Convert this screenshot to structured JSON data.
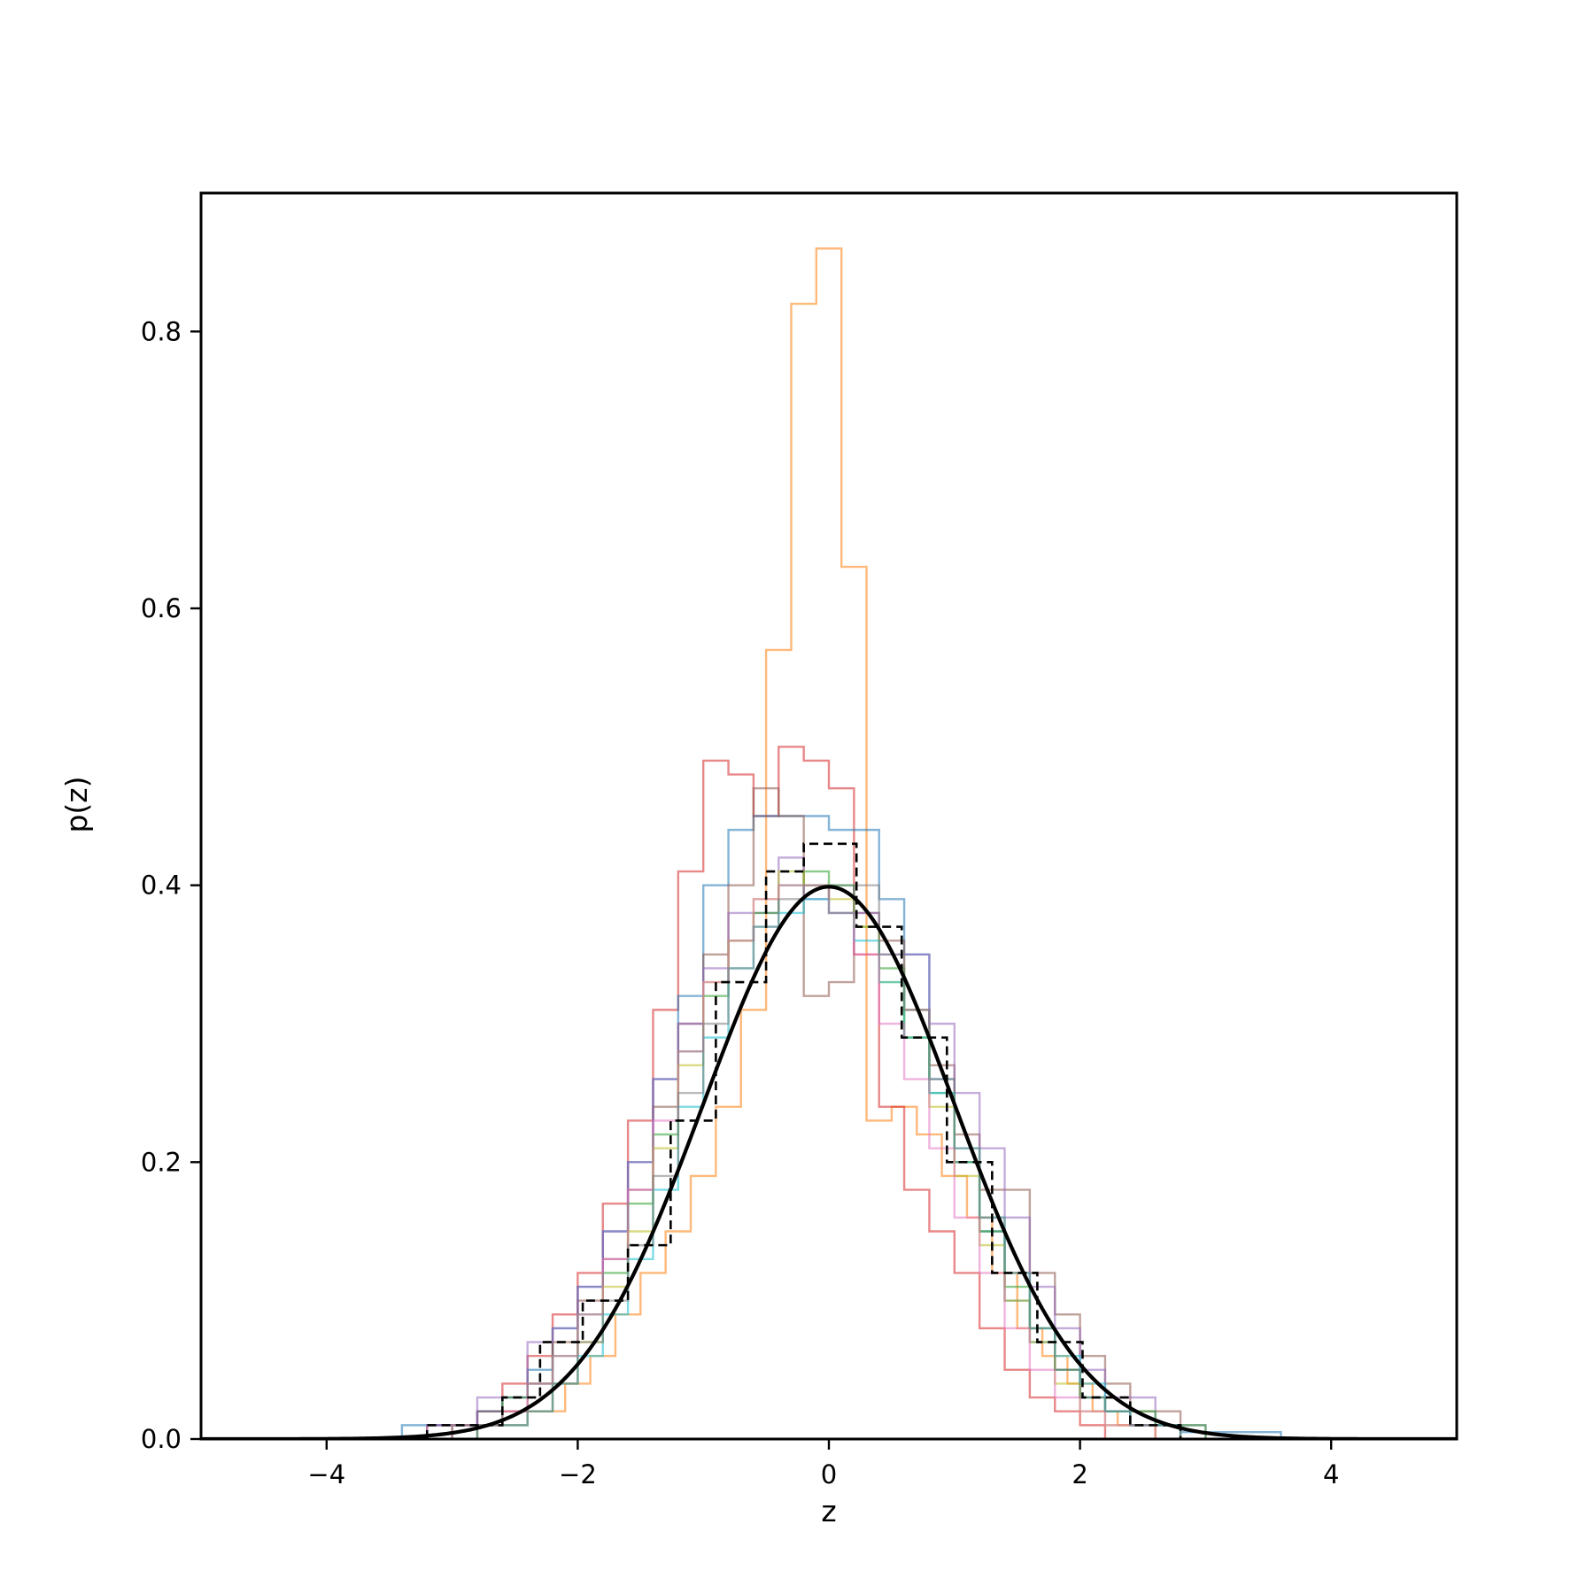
{
  "chart_data": {
    "type": "histogram",
    "xlabel": "z",
    "ylabel": "p(z)",
    "xlim": [
      -5,
      5
    ],
    "ylim": [
      0,
      0.9
    ],
    "xticks": [
      -4,
      -2,
      0,
      2,
      4
    ],
    "xtick_labels": [
      "−4",
      "−2",
      "0",
      "2",
      "4"
    ],
    "yticks": [
      0.0,
      0.2,
      0.4,
      0.6,
      0.8
    ],
    "ytick_labels": [
      "0.0",
      "0.2",
      "0.4",
      "0.6",
      "0.8"
    ],
    "grid": false,
    "legend": false,
    "step_series": [
      {
        "color": "#ff7f0e",
        "edges": [
          -2.8,
          -2.1,
          -1.9,
          -1.7,
          -1.5,
          -1.3,
          -1.1,
          -0.9,
          -0.7,
          -0.5,
          -0.3,
          -0.1,
          0.1,
          0.3,
          0.5,
          0.7,
          0.9,
          1.1,
          1.3,
          1.5,
          1.7,
          1.9,
          2.1,
          2.3,
          2.6
        ],
        "values": [
          0.02,
          0.04,
          0.06,
          0.09,
          0.12,
          0.15,
          0.19,
          0.24,
          0.31,
          0.57,
          0.82,
          0.86,
          0.63,
          0.23,
          0.24,
          0.22,
          0.19,
          0.16,
          0.12,
          0.08,
          0.06,
          0.04,
          0.02,
          0.01
        ]
      },
      {
        "color": "#d62728",
        "edges": [
          -3.2,
          -2.8,
          -2.6,
          -2.4,
          -2.2,
          -2.0,
          -1.8,
          -1.6,
          -1.4,
          -1.2,
          -1.0,
          -0.8,
          -0.6,
          -0.4,
          -0.2,
          0.0,
          0.2,
          0.4,
          0.6,
          0.8,
          1.0,
          1.2,
          1.4,
          1.6,
          1.8,
          2.0,
          2.2
        ],
        "values": [
          0.01,
          0.02,
          0.04,
          0.06,
          0.09,
          0.12,
          0.17,
          0.23,
          0.31,
          0.41,
          0.49,
          0.48,
          0.45,
          0.5,
          0.49,
          0.47,
          0.35,
          0.24,
          0.18,
          0.15,
          0.12,
          0.08,
          0.05,
          0.03,
          0.02,
          0.01
        ]
      },
      {
        "color": "#1f77b4",
        "edges": [
          -3.4,
          -2.8,
          -2.6,
          -2.4,
          -2.2,
          -2.0,
          -1.8,
          -1.6,
          -1.4,
          -1.2,
          -1.0,
          -0.8,
          -0.6,
          -0.4,
          -0.2,
          0.0,
          0.2,
          0.4,
          0.6,
          0.8,
          1.0,
          1.2,
          1.4,
          1.6,
          1.8,
          2.0,
          2.2,
          2.4,
          2.8,
          3.6
        ],
        "values": [
          0.01,
          0.02,
          0.03,
          0.05,
          0.08,
          0.11,
          0.15,
          0.2,
          0.26,
          0.32,
          0.4,
          0.44,
          0.45,
          0.45,
          0.45,
          0.44,
          0.44,
          0.39,
          0.35,
          0.26,
          0.2,
          0.15,
          0.1,
          0.07,
          0.05,
          0.03,
          0.02,
          0.01,
          0.005
        ]
      },
      {
        "color": "#8c564b",
        "edges": [
          -3.0,
          -2.6,
          -2.4,
          -2.2,
          -2.0,
          -1.8,
          -1.6,
          -1.4,
          -1.2,
          -1.0,
          -0.8,
          -0.6,
          -0.4,
          -0.2,
          0.0,
          0.2,
          0.4,
          0.6,
          0.8,
          1.0,
          1.2,
          1.4,
          1.6,
          1.8,
          2.0,
          2.2,
          2.4,
          2.8
        ],
        "values": [
          0.01,
          0.02,
          0.04,
          0.07,
          0.1,
          0.13,
          0.18,
          0.24,
          0.3,
          0.35,
          0.4,
          0.47,
          0.45,
          0.32,
          0.33,
          0.38,
          0.36,
          0.31,
          0.27,
          0.22,
          0.18,
          0.18,
          0.12,
          0.09,
          0.06,
          0.04,
          0.02
        ]
      },
      {
        "color": "#9467bd",
        "edges": [
          -3.2,
          -2.8,
          -2.4,
          -2.2,
          -2.0,
          -1.8,
          -1.6,
          -1.4,
          -1.2,
          -1.0,
          -0.8,
          -0.6,
          -0.4,
          -0.2,
          0.0,
          0.2,
          0.4,
          0.6,
          0.8,
          1.0,
          1.2,
          1.4,
          1.6,
          1.8,
          2.0,
          2.2,
          2.6,
          3.0
        ],
        "values": [
          0.01,
          0.03,
          0.07,
          0.08,
          0.11,
          0.15,
          0.2,
          0.26,
          0.3,
          0.34,
          0.38,
          0.38,
          0.42,
          0.39,
          0.4,
          0.38,
          0.35,
          0.35,
          0.3,
          0.25,
          0.21,
          0.16,
          0.11,
          0.08,
          0.05,
          0.03,
          0.01
        ]
      },
      {
        "color": "#2ca02c",
        "edges": [
          -3.0,
          -2.6,
          -2.4,
          -2.2,
          -2.0,
          -1.8,
          -1.6,
          -1.4,
          -1.2,
          -1.0,
          -0.8,
          -0.6,
          -0.4,
          -0.2,
          0.0,
          0.2,
          0.4,
          0.6,
          0.8,
          1.0,
          1.2,
          1.4,
          1.6,
          1.8,
          2.0,
          2.2,
          2.6,
          3.0
        ],
        "values": [
          0.01,
          0.03,
          0.04,
          0.06,
          0.09,
          0.12,
          0.17,
          0.22,
          0.28,
          0.32,
          0.36,
          0.38,
          0.4,
          0.41,
          0.4,
          0.37,
          0.34,
          0.29,
          0.25,
          0.2,
          0.15,
          0.11,
          0.08,
          0.05,
          0.03,
          0.02,
          0.01
        ]
      },
      {
        "color": "#bcbd22",
        "edges": [
          -2.8,
          -2.4,
          -2.2,
          -2.0,
          -1.8,
          -1.6,
          -1.4,
          -1.2,
          -1.0,
          -0.8,
          -0.6,
          -0.4,
          -0.2,
          0.0,
          0.2,
          0.4,
          0.6,
          0.8,
          1.0,
          1.2,
          1.4,
          1.6,
          1.8,
          2.0,
          2.2,
          2.6
        ],
        "values": [
          0.01,
          0.02,
          0.04,
          0.07,
          0.11,
          0.15,
          0.21,
          0.27,
          0.33,
          0.36,
          0.39,
          0.41,
          0.4,
          0.39,
          0.37,
          0.33,
          0.29,
          0.24,
          0.19,
          0.14,
          0.1,
          0.07,
          0.04,
          0.02,
          0.01
        ]
      },
      {
        "color": "#17becf",
        "edges": [
          -2.8,
          -2.4,
          -2.2,
          -2.0,
          -1.8,
          -1.6,
          -1.4,
          -1.2,
          -1.0,
          -0.8,
          -0.6,
          -0.4,
          -0.2,
          0.0,
          0.2,
          0.4,
          0.6,
          0.8,
          1.0,
          1.2,
          1.4,
          1.6,
          1.8,
          2.0,
          2.2,
          2.4,
          2.8
        ],
        "values": [
          0.01,
          0.02,
          0.04,
          0.06,
          0.09,
          0.13,
          0.18,
          0.24,
          0.29,
          0.34,
          0.37,
          0.38,
          0.39,
          0.38,
          0.36,
          0.33,
          0.29,
          0.25,
          0.21,
          0.16,
          0.12,
          0.08,
          0.06,
          0.04,
          0.02,
          0.01
        ]
      },
      {
        "color": "#e377c2",
        "edges": [
          -3.0,
          -2.6,
          -2.4,
          -2.2,
          -2.0,
          -1.8,
          -1.6,
          -1.4,
          -1.2,
          -1.0,
          -0.8,
          -0.6,
          -0.4,
          -0.2,
          0.0,
          0.2,
          0.4,
          0.6,
          0.8,
          1.0,
          1.2,
          1.4,
          1.6,
          1.8,
          2.0,
          2.2,
          2.6
        ],
        "values": [
          0.01,
          0.02,
          0.04,
          0.06,
          0.09,
          0.13,
          0.18,
          0.23,
          0.28,
          0.33,
          0.36,
          0.39,
          0.4,
          0.4,
          0.38,
          0.35,
          0.3,
          0.26,
          0.21,
          0.16,
          0.12,
          0.08,
          0.05,
          0.03,
          0.02,
          0.01
        ]
      },
      {
        "color": "#7f7f7f",
        "edges": [
          -2.8,
          -2.4,
          -2.2,
          -2.0,
          -1.8,
          -1.6,
          -1.4,
          -1.2,
          -1.0,
          -0.8,
          -0.6,
          -0.4,
          -0.2,
          0.0,
          0.2,
          0.4,
          0.6,
          0.8,
          1.0,
          1.2,
          1.4,
          1.6,
          1.8,
          2.0,
          2.2,
          2.4,
          2.8
        ],
        "values": [
          0.01,
          0.02,
          0.04,
          0.07,
          0.1,
          0.14,
          0.19,
          0.25,
          0.3,
          0.34,
          0.37,
          0.39,
          0.4,
          0.38,
          0.4,
          0.35,
          0.31,
          0.26,
          0.21,
          0.16,
          0.12,
          0.08,
          0.05,
          0.03,
          0.02,
          0.01
        ]
      },
      {
        "color": "#000000",
        "dashed": true,
        "edges": [
          -3.2,
          -2.8,
          -2.6,
          -2.3,
          -1.96,
          -1.6,
          -1.26,
          -0.9,
          -0.5,
          -0.2,
          0.22,
          0.58,
          0.94,
          1.3,
          1.66,
          2.02,
          2.4,
          2.8
        ],
        "values": [
          0.01,
          0.01,
          0.03,
          0.07,
          0.1,
          0.14,
          0.23,
          0.33,
          0.41,
          0.43,
          0.37,
          0.29,
          0.2,
          0.12,
          0.07,
          0.03,
          0.01
        ]
      }
    ],
    "curve": {
      "type": "normal_pdf",
      "mean": 0,
      "std": 1,
      "range": [
        -5,
        5
      ],
      "color": "#000000"
    }
  }
}
